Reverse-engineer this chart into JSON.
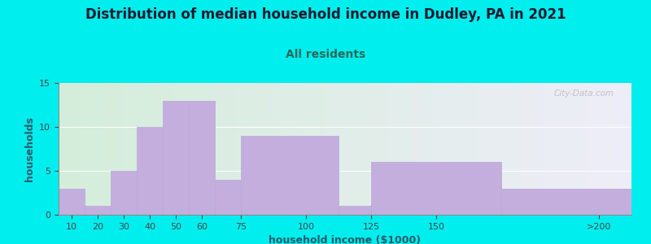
{
  "title": "Distribution of median household income in Dudley, PA in 2021",
  "subtitle": "All residents",
  "xlabel": "household income ($1000)",
  "ylabel": "households",
  "background_color": "#00EEEE",
  "plot_bg_gradient_left": "#d4edda",
  "plot_bg_gradient_right": "#eeeef8",
  "bar_color": "#c4aede",
  "bar_edge_color": "#b8a8d8",
  "values": [
    3,
    1,
    5,
    10,
    13,
    13,
    4,
    9,
    1,
    6,
    3
  ],
  "bar_lefts": [
    5,
    15,
    25,
    35,
    45,
    55,
    65,
    75,
    112.5,
    125,
    175
  ],
  "bar_widths": [
    10,
    10,
    10,
    10,
    10,
    10,
    10,
    37.5,
    12.5,
    50,
    50
  ],
  "xtick_pos": [
    10,
    20,
    30,
    40,
    50,
    60,
    75,
    100,
    125,
    150,
    212.5
  ],
  "xtick_labels": [
    "10",
    "20",
    "30",
    "40",
    "50",
    "60",
    "75",
    "100",
    "125",
    "150",
    ">200"
  ],
  "xlim": [
    5,
    225
  ],
  "ylim": [
    0,
    15
  ],
  "yticks": [
    0,
    5,
    10,
    15
  ],
  "title_fontsize": 12,
  "subtitle_fontsize": 10,
  "axis_label_fontsize": 9,
  "tick_fontsize": 8,
  "watermark_text": "City-Data.com"
}
